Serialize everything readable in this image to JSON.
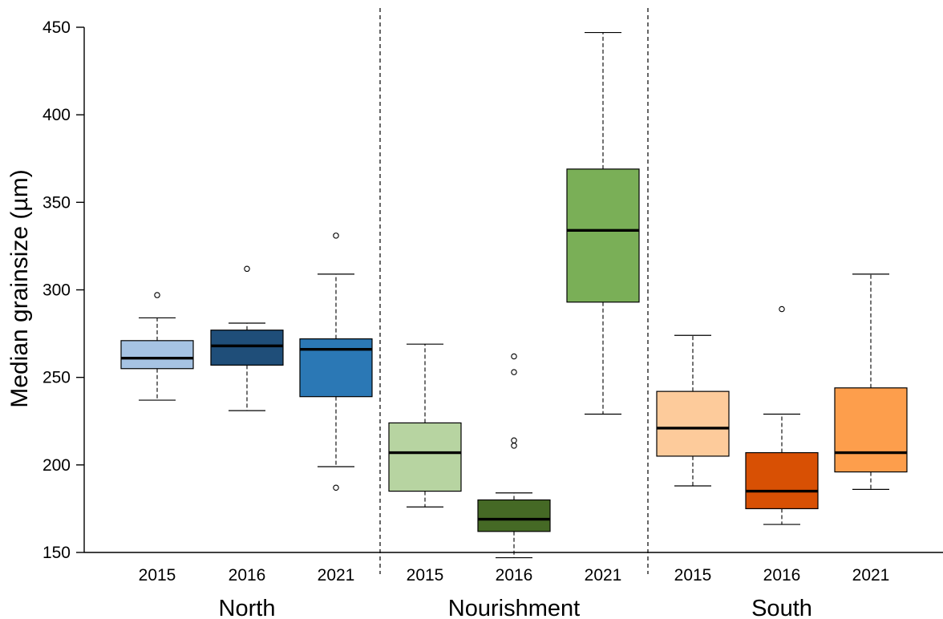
{
  "chart_data": {
    "type": "boxplot",
    "ylabel": "Median grainsize (µm)",
    "ylim": [
      150,
      450
    ],
    "yticks": [
      150,
      200,
      250,
      300,
      350,
      400,
      450
    ],
    "grid": false,
    "groups": [
      {
        "name": "North",
        "boxes": [
          {
            "label": "2015",
            "color": "#a6c3e3",
            "whisker_low": 237,
            "q1": 255,
            "median": 261,
            "q3": 271,
            "whisker_high": 284,
            "outliers": [
              297
            ]
          },
          {
            "label": "2016",
            "color": "#1f4e79",
            "whisker_low": 231,
            "q1": 257,
            "median": 268,
            "q3": 277,
            "whisker_high": 281,
            "outliers": [
              312
            ]
          },
          {
            "label": "2021",
            "color": "#2b78b5",
            "whisker_low": 199,
            "q1": 239,
            "median": 266,
            "q3": 272,
            "whisker_high": 309,
            "outliers": [
              187,
              331
            ]
          }
        ]
      },
      {
        "name": "Nourishment",
        "boxes": [
          {
            "label": "2015",
            "color": "#b7d4a1",
            "whisker_low": 176,
            "q1": 185,
            "median": 207,
            "q3": 224,
            "whisker_high": 269,
            "outliers": []
          },
          {
            "label": "2016",
            "color": "#456925",
            "whisker_low": 147,
            "q1": 162,
            "median": 169,
            "q3": 180,
            "whisker_high": 184,
            "outliers": [
              211,
              214,
              253,
              262
            ]
          },
          {
            "label": "2021",
            "color": "#7aaf57",
            "whisker_low": 229,
            "q1": 293,
            "median": 334,
            "q3": 369,
            "whisker_high": 447,
            "outliers": []
          }
        ]
      },
      {
        "name": "South",
        "boxes": [
          {
            "label": "2015",
            "color": "#fdcb9b",
            "whisker_low": 188,
            "q1": 205,
            "median": 221,
            "q3": 242,
            "whisker_high": 274,
            "outliers": []
          },
          {
            "label": "2016",
            "color": "#d85004",
            "whisker_low": 166,
            "q1": 175,
            "median": 185,
            "q3": 207,
            "whisker_high": 229,
            "outliers": [
              289
            ]
          },
          {
            "label": "2021",
            "color": "#fd9e4c",
            "whisker_low": 186,
            "q1": 196,
            "median": 207,
            "q3": 244,
            "whisker_high": 309,
            "outliers": []
          }
        ]
      }
    ]
  }
}
